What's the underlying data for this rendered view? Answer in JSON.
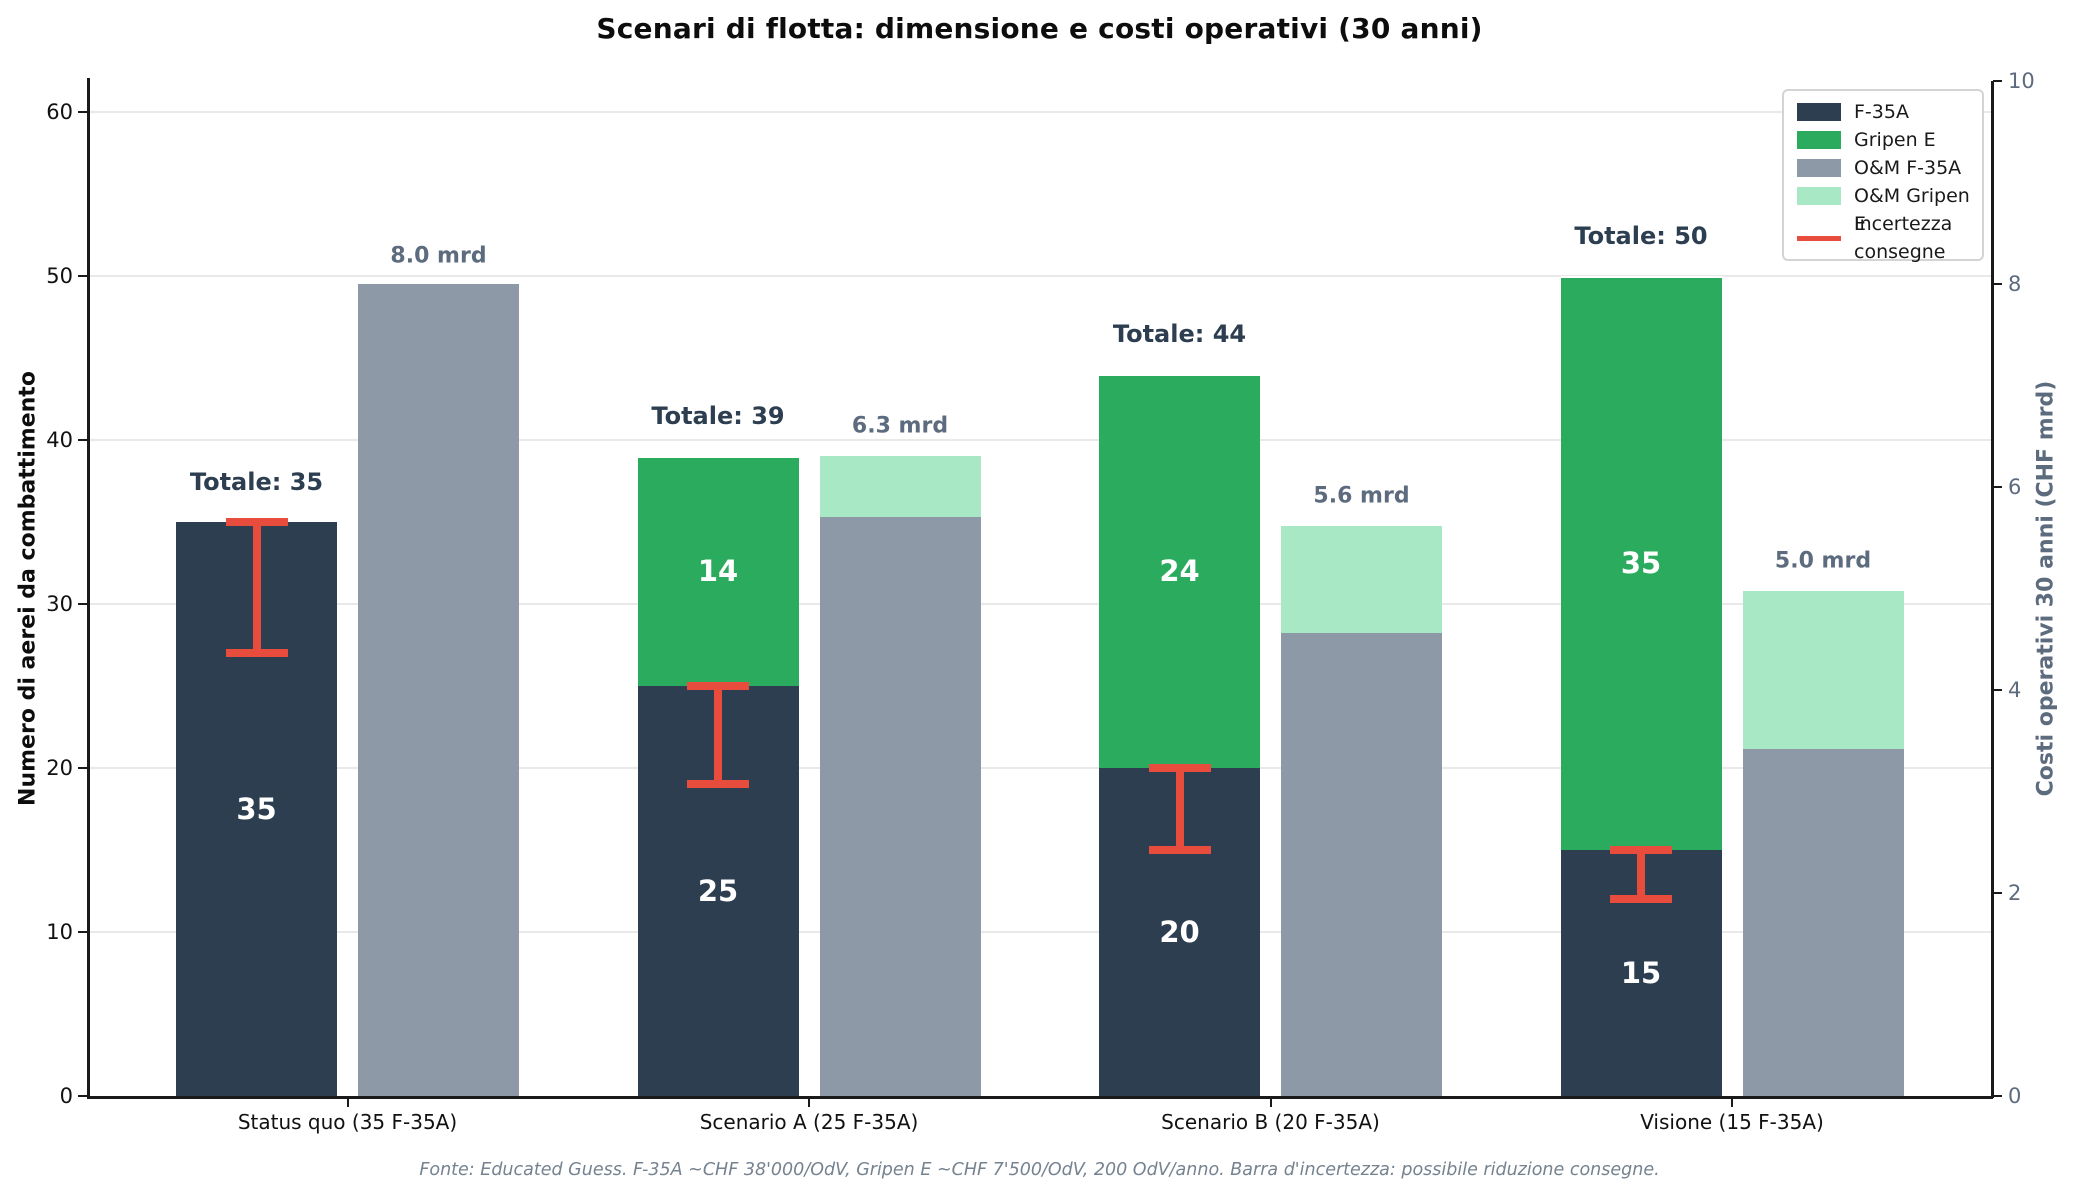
{
  "title": "Scenari di flotta: dimensione e costi operativi (30 anni)",
  "footer": "Fonte: Educated Guess. F-35A ~CHF 38'000/OdV, Gripen E ~CHF 7'500/OdV, 200 OdV/anno. Barra d'incertezza: possibile riduzione consegne.",
  "chart_data": {
    "type": "bar",
    "layout_hint": "grouped stacked bars, dual y-axis, legend top-right, horizontal grid on",
    "left_axis": {
      "label": "Numero di aerei da combattimento",
      "ticks": [
        0,
        10,
        20,
        30,
        40,
        50,
        60
      ],
      "range": [
        0,
        62
      ]
    },
    "right_axis": {
      "label": "Costi operativi 30 anni (CHF mrd)",
      "ticks": [
        0,
        2,
        4,
        6,
        8,
        10
      ],
      "range": [
        0,
        10
      ]
    },
    "categories": [
      {
        "line1": "Status quo",
        "line2": "(35 F-35A)"
      },
      {
        "line1": "Scenario A",
        "line2": "(25 F-35A)"
      },
      {
        "line1": "Scenario B",
        "line2": "(20 F-35A)"
      },
      {
        "line1": "Visione",
        "line2": "(15 F-35A)"
      }
    ],
    "series": [
      {
        "name": "F-35A",
        "axis": "left",
        "values": [
          35,
          25,
          20,
          15
        ]
      },
      {
        "name": "Gripen E",
        "axis": "left",
        "values": [
          0,
          14,
          24,
          35
        ]
      },
      {
        "name": "O&M F-35A",
        "axis": "right",
        "values": [
          8.0,
          5.7,
          4.56,
          3.42
        ]
      },
      {
        "name": "O&M Gripen E",
        "axis": "right",
        "values": [
          0,
          0.63,
          1.08,
          1.575
        ]
      }
    ],
    "totals": [
      35,
      39,
      44,
      50
    ],
    "total_label_prefix": "Totale: ",
    "om_labels": [
      "8.0 mrd",
      "6.3 mrd",
      "5.6 mrd",
      "5.0 mrd"
    ],
    "error_bars": {
      "name": "Incertezza consegne",
      "high": [
        35,
        25,
        20,
        15
      ],
      "low": [
        27,
        19,
        15,
        12
      ]
    },
    "legend": [
      {
        "label": "F-35A",
        "swatch": "patch",
        "color": "#2d3e50"
      },
      {
        "label": "Gripen E",
        "swatch": "patch",
        "color": "#2aab5d"
      },
      {
        "label": "O&M F-35A",
        "swatch": "patch",
        "color": "#8e99a8"
      },
      {
        "label": "O&M Gripen E",
        "swatch": "patch",
        "color": "#a9e8c4"
      },
      {
        "label": "Incertezza\nconsegne",
        "swatch": "line",
        "color": "#e74c3c"
      }
    ],
    "colors": {
      "f35a": "#2d3e50",
      "gripen": "#2aab5d",
      "om_f35a": "#8e99a8",
      "om_gripen": "#a9e8c4",
      "error": "#e74c3c",
      "grid": "#e9e9e9",
      "total_label": "#2c3e50",
      "om_label": "#5d6b7e",
      "right_axis_text": "#5d6b7e",
      "footer_text": "#75828f"
    }
  }
}
